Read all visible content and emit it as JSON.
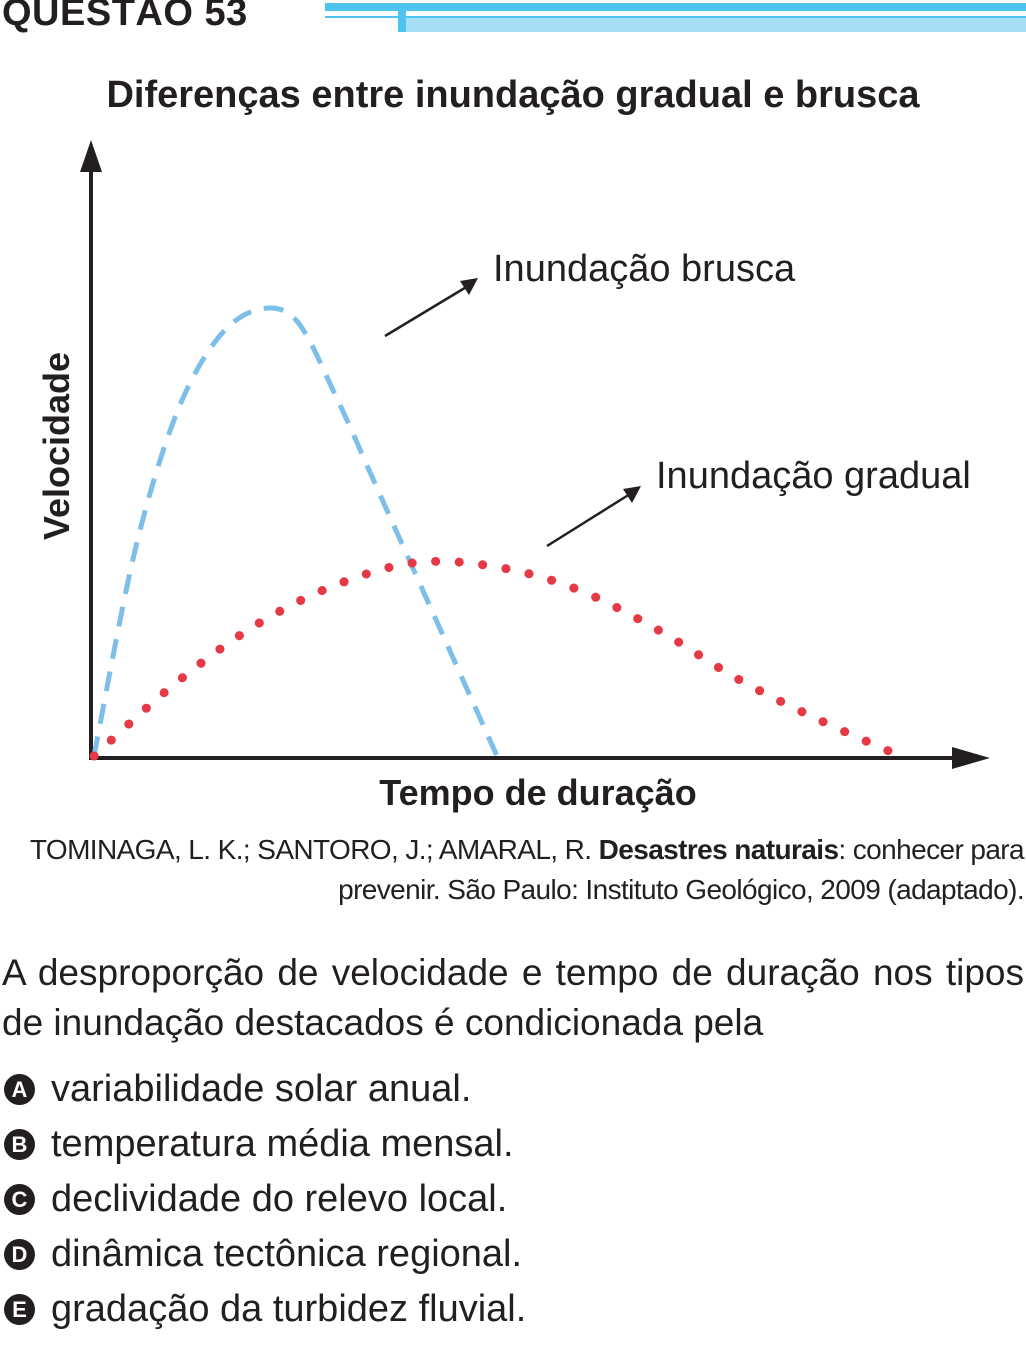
{
  "question": {
    "title": "QUESTÃO 53"
  },
  "chart_data": {
    "type": "line",
    "title": "Diferenças entre inundação gradual e brusca",
    "xlabel": "Tempo de duração",
    "ylabel": "Velocidade",
    "grid": false,
    "series": [
      {
        "name": "Inundação brusca",
        "style": "dashed",
        "color": "#7dbfe8",
        "x": [
          0,
          0.05,
          0.1,
          0.15,
          0.2,
          0.25,
          0.3,
          0.35,
          0.4,
          0.45,
          0.5
        ],
        "y": [
          0,
          0.45,
          0.75,
          0.92,
          0.99,
          0.97,
          0.8,
          0.6,
          0.4,
          0.2,
          0
        ]
      },
      {
        "name": "Inundação gradual",
        "style": "dotted",
        "color": "#e63946",
        "x": [
          0,
          0.1,
          0.2,
          0.3,
          0.4,
          0.5,
          0.6,
          0.7,
          0.8,
          0.9,
          1.0
        ],
        "y": [
          0,
          0.16,
          0.29,
          0.38,
          0.43,
          0.42,
          0.37,
          0.28,
          0.17,
          0.08,
          0
        ]
      }
    ]
  },
  "source": {
    "authors": "TOMINAGA, L. K.; SANTORO, J.; AMARAL, R.",
    "work": "Desastres naturais",
    "rest": ": conhecer para prevenir. São Paulo: Instituto Geológico, 2009 (adaptado)."
  },
  "stem": "A desproporção de velocidade e tempo de duração nos tipos de inundação destacados é condicionada pela",
  "alternatives": [
    {
      "letter": "A",
      "text": "variabilidade solar anual."
    },
    {
      "letter": "B",
      "text": "temperatura média mensal."
    },
    {
      "letter": "C",
      "text": "declividade do relevo local."
    },
    {
      "letter": "D",
      "text": "dinâmica tectônica regional."
    },
    {
      "letter": "E",
      "text": "gradação da turbidez fluvial."
    }
  ]
}
